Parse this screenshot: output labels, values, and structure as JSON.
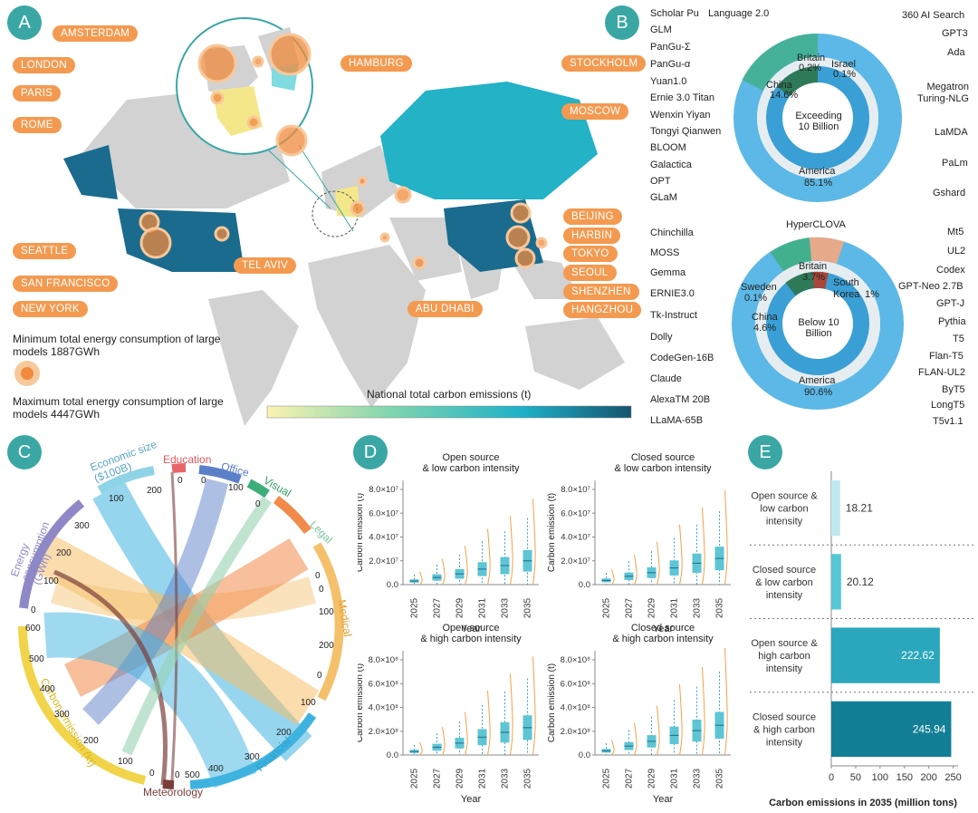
{
  "panels": {
    "a": "A",
    "b": "B",
    "c": "C",
    "d": "D",
    "e": "E"
  },
  "map": {
    "cities": [
      "AMSTERDAM",
      "LONDON",
      "PARIS",
      "ROME",
      "HAMBURG",
      "STOCKHOLM",
      "MOSCOW",
      "SEATTLE",
      "SAN FRANCISCO",
      "NEW YORK",
      "TEL AVIV",
      "ABU DHABI",
      "BEIJING",
      "HARBIN",
      "TOKYO",
      "SEOUL",
      "SHENZHEN",
      "HANGZHOU"
    ],
    "legend_min": "Minimum total energy consumption of large models 1887GWh",
    "legend_max": "Maximum total energy consumption of large models 4447GWh",
    "colorbar_title": "National total carbon emissions (t)",
    "colors": {
      "land": "#d2d2d2",
      "usa": "#1a6b8e",
      "china": "#1a6b8e",
      "russia": "#23b2c6",
      "bubble": "#f08a3c",
      "bubble_light": "#f7c89a"
    }
  },
  "donut_top": {
    "center": "Exceeding 10 Billion",
    "regions": [
      {
        "name": "America",
        "pct": "85.1%"
      },
      {
        "name": "China",
        "pct": "14.6%"
      },
      {
        "name": "Britain",
        "pct": "0.2%"
      },
      {
        "name": "Israel",
        "pct": "0.1%"
      }
    ],
    "left_models": [
      "Scholar Pu",
      "GLM",
      "PanGu-Σ",
      "PanGu-α",
      "Yuan1.0",
      "Ernie 3.0 Titan",
      "Wenxin Yiyan",
      "Tongyi Qianwen",
      "BLOOM",
      "Galactica",
      "OPT",
      "GLaM"
    ],
    "top_model": "Language 2.0",
    "right_models": [
      "360 AI Search",
      "GPT3",
      "Ada",
      "Megatron Turing-NLG",
      "LaMDA",
      "PaLm",
      "Gshard"
    ]
  },
  "donut_bottom": {
    "center": "Below 10 Billion",
    "regions": [
      {
        "name": "America",
        "pct": "90.6%"
      },
      {
        "name": "China",
        "pct": "4.6%"
      },
      {
        "name": "Britain",
        "pct": "3.7%"
      },
      {
        "name": "South Korea",
        "pct": "1%"
      },
      {
        "name": "Sweden",
        "pct": "0.1%"
      }
    ],
    "top_model": "HyperCLOVA",
    "left_models": [
      "Chinchilla",
      "MOSS",
      "Gemma",
      "ERNIE3.0",
      "Tk-Instruct",
      "Dolly",
      "CodeGen-16B",
      "Claude",
      "AlexaTM 20B",
      "LLaMA-65B"
    ],
    "right_models": [
      "Mt5",
      "UL2",
      "Codex",
      "GPT-Neo 2.7B",
      "GPT-J",
      "Pythia",
      "T5",
      "Flan-T5",
      "FLAN-UL2",
      "ByT5",
      "LongT5",
      "T5v1.1"
    ]
  },
  "chord": {
    "groups": [
      {
        "name": "Economic size ($100B)",
        "ticks": [
          "100",
          "200"
        ],
        "color": "#8fd3e6"
      },
      {
        "name": "Education",
        "ticks": [
          "0"
        ],
        "color": "#e8666a"
      },
      {
        "name": "Office",
        "ticks": [
          "0",
          "100"
        ],
        "color": "#5b80c8"
      },
      {
        "name": "Visual",
        "ticks": [
          "0"
        ],
        "color": "#3cae78"
      },
      {
        "name": "Legal",
        "ticks": [
          "0"
        ],
        "color": "#96d2b0"
      },
      {
        "name": "Medical",
        "ticks": [
          "0",
          "100",
          "200"
        ],
        "color": "#f5c06a"
      },
      {
        "name": "Financial",
        "ticks": [
          "0",
          "100",
          "200",
          "300",
          "400"
        ],
        "color": "#3fb3e0"
      },
      {
        "name": "Meteorology",
        "ticks": [
          "0",
          "500"
        ],
        "color": "#7a3e3a"
      },
      {
        "name": "Carbon emission (kt)",
        "ticks": [
          "0",
          "100",
          "200",
          "300",
          "400",
          "500",
          "600"
        ],
        "color": "#f1d44a"
      },
      {
        "name": "Energy consumption (GWh)",
        "ticks": [
          "0",
          "100",
          "200",
          "300"
        ],
        "color": "#8f88c6"
      },
      {
        "name": "Legal",
        "ticks": [],
        "color": "#f28a4a"
      }
    ]
  },
  "chart_data": [
    {
      "type": "box",
      "title": "Open source & low carbon intensity",
      "xlabel": "Year",
      "ylabel": "Carbon emission (t)",
      "categories": [
        "2025",
        "2027",
        "2029",
        "2031",
        "2033",
        "2035"
      ],
      "yticks": [
        "0.0",
        "2.0×10⁷",
        "4.0×10⁷",
        "6.0×10⁷",
        "8.0×10⁷"
      ],
      "ylim": [
        0,
        80000000
      ],
      "medians": [
        3000000,
        6000000,
        9000000,
        13000000,
        16000000,
        20000000
      ]
    },
    {
      "type": "box",
      "title": "Closed source & low carbon intensity",
      "xlabel": "Year",
      "ylabel": "Carbon emission (t)",
      "categories": [
        "2025",
        "2027",
        "2029",
        "2031",
        "2033",
        "2035"
      ],
      "yticks": [
        "0.0",
        "2.0×10⁷",
        "4.0×10⁷",
        "6.0×10⁷",
        "8.0×10⁷"
      ],
      "ylim": [
        0,
        80000000
      ],
      "medians": [
        3500000,
        7000000,
        10000000,
        14000000,
        18000000,
        22000000
      ]
    },
    {
      "type": "box",
      "title": "Open source & high carbon intensity",
      "xlabel": "Year",
      "ylabel": "Carbon emission (t)",
      "categories": [
        "2025",
        "2027",
        "2029",
        "2031",
        "2033",
        "2035"
      ],
      "yticks": [
        "0.0",
        "2.0×10⁸",
        "4.0×10⁸",
        "6.0×10⁸",
        "8.0×10⁸"
      ],
      "ylim": [
        0,
        800000000
      ],
      "medians": [
        30000000,
        65000000,
        100000000,
        150000000,
        190000000,
        230000000
      ]
    },
    {
      "type": "box",
      "title": "Closed source & high carbon intensity",
      "xlabel": "Year",
      "ylabel": "Carbon emission (t)",
      "categories": [
        "2025",
        "2027",
        "2029",
        "2031",
        "2033",
        "2035"
      ],
      "yticks": [
        "0.0",
        "2.0×10⁸",
        "4.0×10⁸",
        "6.0×10⁸",
        "8.0×10⁸"
      ],
      "ylim": [
        0,
        800000000
      ],
      "medians": [
        35000000,
        75000000,
        115000000,
        165000000,
        205000000,
        250000000
      ]
    },
    {
      "type": "bar",
      "orientation": "horizontal",
      "categories": [
        "Open source & low carbon intensity",
        "Closed source & low carbon intensity",
        "Open source & high carbon intensity",
        "Closed source & high carbon intensity"
      ],
      "values": [
        18.21,
        20.12,
        222.62,
        245.94
      ],
      "value_labels": [
        "18.21",
        "20.12",
        "222.62",
        "245.94"
      ],
      "xlabel": "Carbon emissions in 2035 (million tons)",
      "xticks": [
        "0",
        "50",
        "100",
        "150",
        "200",
        "250"
      ],
      "xlim": [
        0,
        260
      ],
      "colors": [
        "#bfe9f0",
        "#57c7d6",
        "#2aa7bd",
        "#127f96"
      ]
    }
  ]
}
